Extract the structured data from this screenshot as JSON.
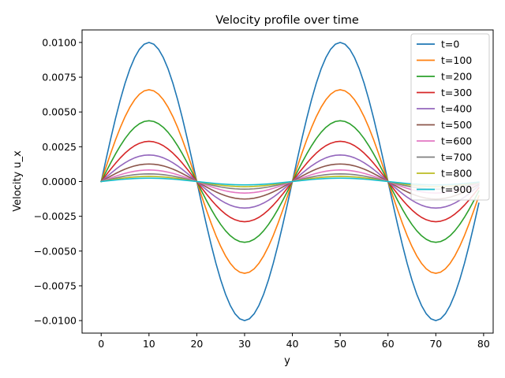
{
  "chart_data": {
    "type": "line",
    "title": "Velocity profile over time",
    "xlabel": "y",
    "ylabel": "Velocity u_x",
    "xlim": [
      -4,
      82
    ],
    "ylim": [
      -0.0109,
      0.0109
    ],
    "xticks": [
      "0",
      "10",
      "20",
      "30",
      "40",
      "50",
      "60",
      "70",
      "80"
    ],
    "yticks": [
      "0.0100",
      "0.0075",
      "0.0050",
      "0.0025",
      "0.0000",
      "−0.0025",
      "−0.0050",
      "−0.0075",
      "−0.0100"
    ],
    "x": {
      "start": 0,
      "end": 79,
      "step": 1
    },
    "profile": "sine",
    "wavelength": 40,
    "grid": false,
    "legend_position": "top-right",
    "series": [
      {
        "name": "t=0",
        "amplitude": 0.01,
        "color": "#1f77b4"
      },
      {
        "name": "t=100",
        "amplitude": 0.0066,
        "color": "#ff7f0e"
      },
      {
        "name": "t=200",
        "amplitude": 0.00437,
        "color": "#2ca02c"
      },
      {
        "name": "t=300",
        "amplitude": 0.00289,
        "color": "#d62728"
      },
      {
        "name": "t=400",
        "amplitude": 0.00191,
        "color": "#9467bd"
      },
      {
        "name": "t=500",
        "amplitude": 0.00126,
        "color": "#8c564b"
      },
      {
        "name": "t=600",
        "amplitude": 0.00083,
        "color": "#e377c2"
      },
      {
        "name": "t=700",
        "amplitude": 0.00055,
        "color": "#7f7f7f"
      },
      {
        "name": "t=800",
        "amplitude": 0.00037,
        "color": "#bcbd22"
      },
      {
        "name": "t=900",
        "amplitude": 0.00024,
        "color": "#17becf"
      }
    ]
  }
}
